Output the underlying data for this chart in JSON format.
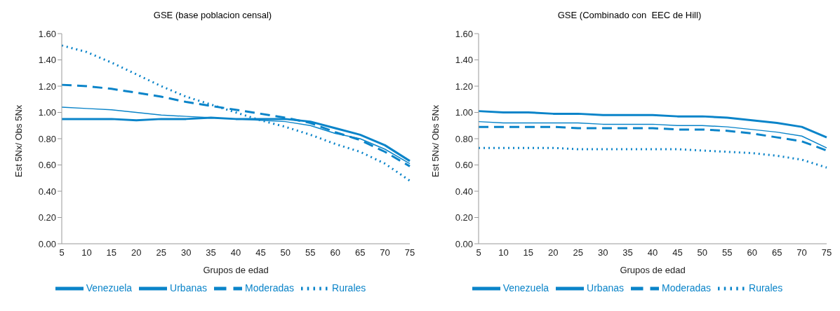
{
  "chart_data": [
    {
      "type": "line",
      "title": "GSE (base poblacion censal)",
      "xlabel": "Grupos de edad",
      "ylabel": "Est 5Nx/ Obs 5Nx",
      "categories": [
        "5",
        "10",
        "15",
        "20",
        "25",
        "30",
        "35",
        "40",
        "45",
        "50",
        "55",
        "60",
        "65",
        "70",
        "75"
      ],
      "series": [
        {
          "name": "Venezuela",
          "color": "#0a84c9",
          "line_style": "solid",
          "values": [
            1.04,
            1.03,
            1.02,
            1.0,
            0.98,
            0.97,
            0.96,
            0.95,
            0.94,
            0.93,
            0.9,
            0.84,
            0.8,
            0.72,
            0.61
          ]
        },
        {
          "name": "Urbanas",
          "color": "#0a84c9",
          "line_style": "solid",
          "values": [
            0.95,
            0.95,
            0.95,
            0.94,
            0.95,
            0.95,
            0.96,
            0.95,
            0.95,
            0.95,
            0.93,
            0.88,
            0.83,
            0.75,
            0.63
          ]
        },
        {
          "name": "Moderadas",
          "color": "#0a84c9",
          "line_style": "dashed",
          "values": [
            1.21,
            1.2,
            1.18,
            1.15,
            1.12,
            1.08,
            1.05,
            1.02,
            0.99,
            0.96,
            0.92,
            0.85,
            0.79,
            0.7,
            0.59
          ]
        },
        {
          "name": "Rurales",
          "color": "#0a84c9",
          "line_style": "dotted",
          "values": [
            1.51,
            1.46,
            1.38,
            1.29,
            1.2,
            1.12,
            1.06,
            1.0,
            0.94,
            0.89,
            0.83,
            0.76,
            0.7,
            0.61,
            0.48
          ]
        }
      ],
      "ylim": [
        0,
        1.6
      ],
      "yticks": [
        {
          "value": 0,
          "label": "0.00"
        },
        {
          "value": 0.2,
          "label": "0.20"
        },
        {
          "value": 0.4,
          "label": "0.40"
        },
        {
          "value": 0.6,
          "label": "0.60"
        },
        {
          "value": 0.8,
          "label": "0.80"
        },
        {
          "value": 1,
          "label": "1.00"
        },
        {
          "value": 1.2,
          "label": "1.20"
        },
        {
          "value": 1.4,
          "label": "1.40"
        },
        {
          "value": 1.6,
          "label": "1.60"
        }
      ],
      "grid": false,
      "legend": "bottom",
      "marker": "none"
    },
    {
      "type": "line",
      "title": "GSE (Combinado con  EEC de Hill)",
      "xlabel": "Grupos de edad",
      "ylabel": "Est 5Nx/ Obs 5Nx",
      "categories": [
        "5",
        "10",
        "15",
        "20",
        "25",
        "30",
        "35",
        "40",
        "45",
        "50",
        "55",
        "60",
        "65",
        "70",
        "75"
      ],
      "series": [
        {
          "name": "Venezuela",
          "color": "#0a84c9",
          "line_style": "solid",
          "values": [
            0.93,
            0.92,
            0.92,
            0.92,
            0.92,
            0.91,
            0.91,
            0.91,
            0.9,
            0.9,
            0.89,
            0.87,
            0.85,
            0.82,
            0.73
          ]
        },
        {
          "name": "Urbanas",
          "color": "#0a84c9",
          "line_style": "solid",
          "values": [
            1.01,
            1.0,
            1.0,
            0.99,
            0.99,
            0.98,
            0.98,
            0.98,
            0.97,
            0.97,
            0.96,
            0.94,
            0.92,
            0.89,
            0.81
          ]
        },
        {
          "name": "Moderadas",
          "color": "#0a84c9",
          "line_style": "dashed",
          "values": [
            0.89,
            0.89,
            0.89,
            0.89,
            0.88,
            0.88,
            0.88,
            0.88,
            0.87,
            0.87,
            0.86,
            0.84,
            0.81,
            0.78,
            0.71
          ]
        },
        {
          "name": "Rurales",
          "color": "#0a84c9",
          "line_style": "dotted",
          "values": [
            0.73,
            0.73,
            0.73,
            0.73,
            0.72,
            0.72,
            0.72,
            0.72,
            0.72,
            0.71,
            0.7,
            0.69,
            0.67,
            0.64,
            0.58
          ]
        }
      ],
      "ylim": [
        0,
        1.6
      ],
      "yticks": [
        {
          "value": 0,
          "label": "0.00"
        },
        {
          "value": 0.2,
          "label": "0.20"
        },
        {
          "value": 0.4,
          "label": "0.40"
        },
        {
          "value": 0.6,
          "label": "0.60"
        },
        {
          "value": 0.8,
          "label": "0.80"
        },
        {
          "value": 1,
          "label": "1.00"
        },
        {
          "value": 1.2,
          "label": "1.20"
        },
        {
          "value": 1.4,
          "label": "1.40"
        },
        {
          "value": 1.6,
          "label": "1.60"
        }
      ],
      "grid": false,
      "legend": "bottom",
      "marker": "none"
    }
  ]
}
